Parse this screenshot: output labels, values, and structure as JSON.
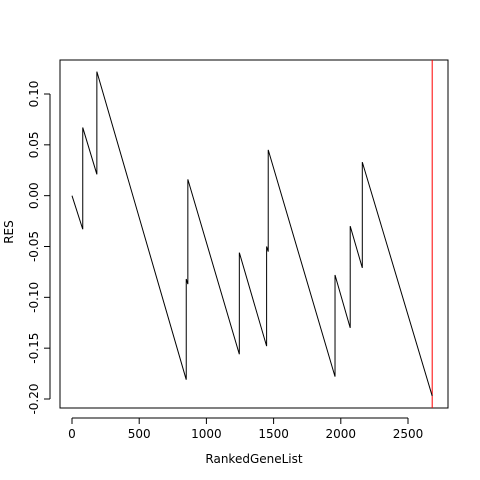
{
  "chart_data": {
    "type": "line",
    "title": "",
    "xlabel": "RankedGeneList",
    "ylabel": "RES",
    "xlim": [
      0,
      2700
    ],
    "ylim": [
      -0.2,
      0.12
    ],
    "x_ticks": [
      0,
      500,
      1000,
      1500,
      2000,
      2500
    ],
    "y_ticks": [
      -0.2,
      -0.15,
      -0.1,
      -0.05,
      0.0,
      0.05,
      0.1
    ],
    "x_tick_labels": [
      "0",
      "500",
      "1000",
      "1500",
      "2000",
      "2500"
    ],
    "y_tick_labels": [
      "-0.20",
      "-0.15",
      "-0.10",
      "-0.05",
      "0.00",
      "0.05",
      "0.10"
    ],
    "grid": false,
    "series": [
      {
        "color": "#000000",
        "x": [
          0,
          80,
          80,
          185,
          185,
          850,
          850,
          862,
          862,
          1245,
          1245,
          1448,
          1448,
          1460,
          1460,
          1957,
          1957,
          2070,
          2070,
          2160,
          2160,
          2680
        ],
        "y": [
          0.0,
          -0.033,
          0.067,
          0.021,
          0.122,
          -0.181,
          -0.082,
          -0.087,
          0.016,
          -0.156,
          -0.056,
          -0.148,
          -0.05,
          -0.055,
          0.045,
          -0.178,
          -0.078,
          -0.13,
          -0.03,
          -0.071,
          0.033,
          -0.197
        ]
      }
    ],
    "vertical_marker": {
      "x": 2680,
      "color": "#ff0000"
    }
  }
}
